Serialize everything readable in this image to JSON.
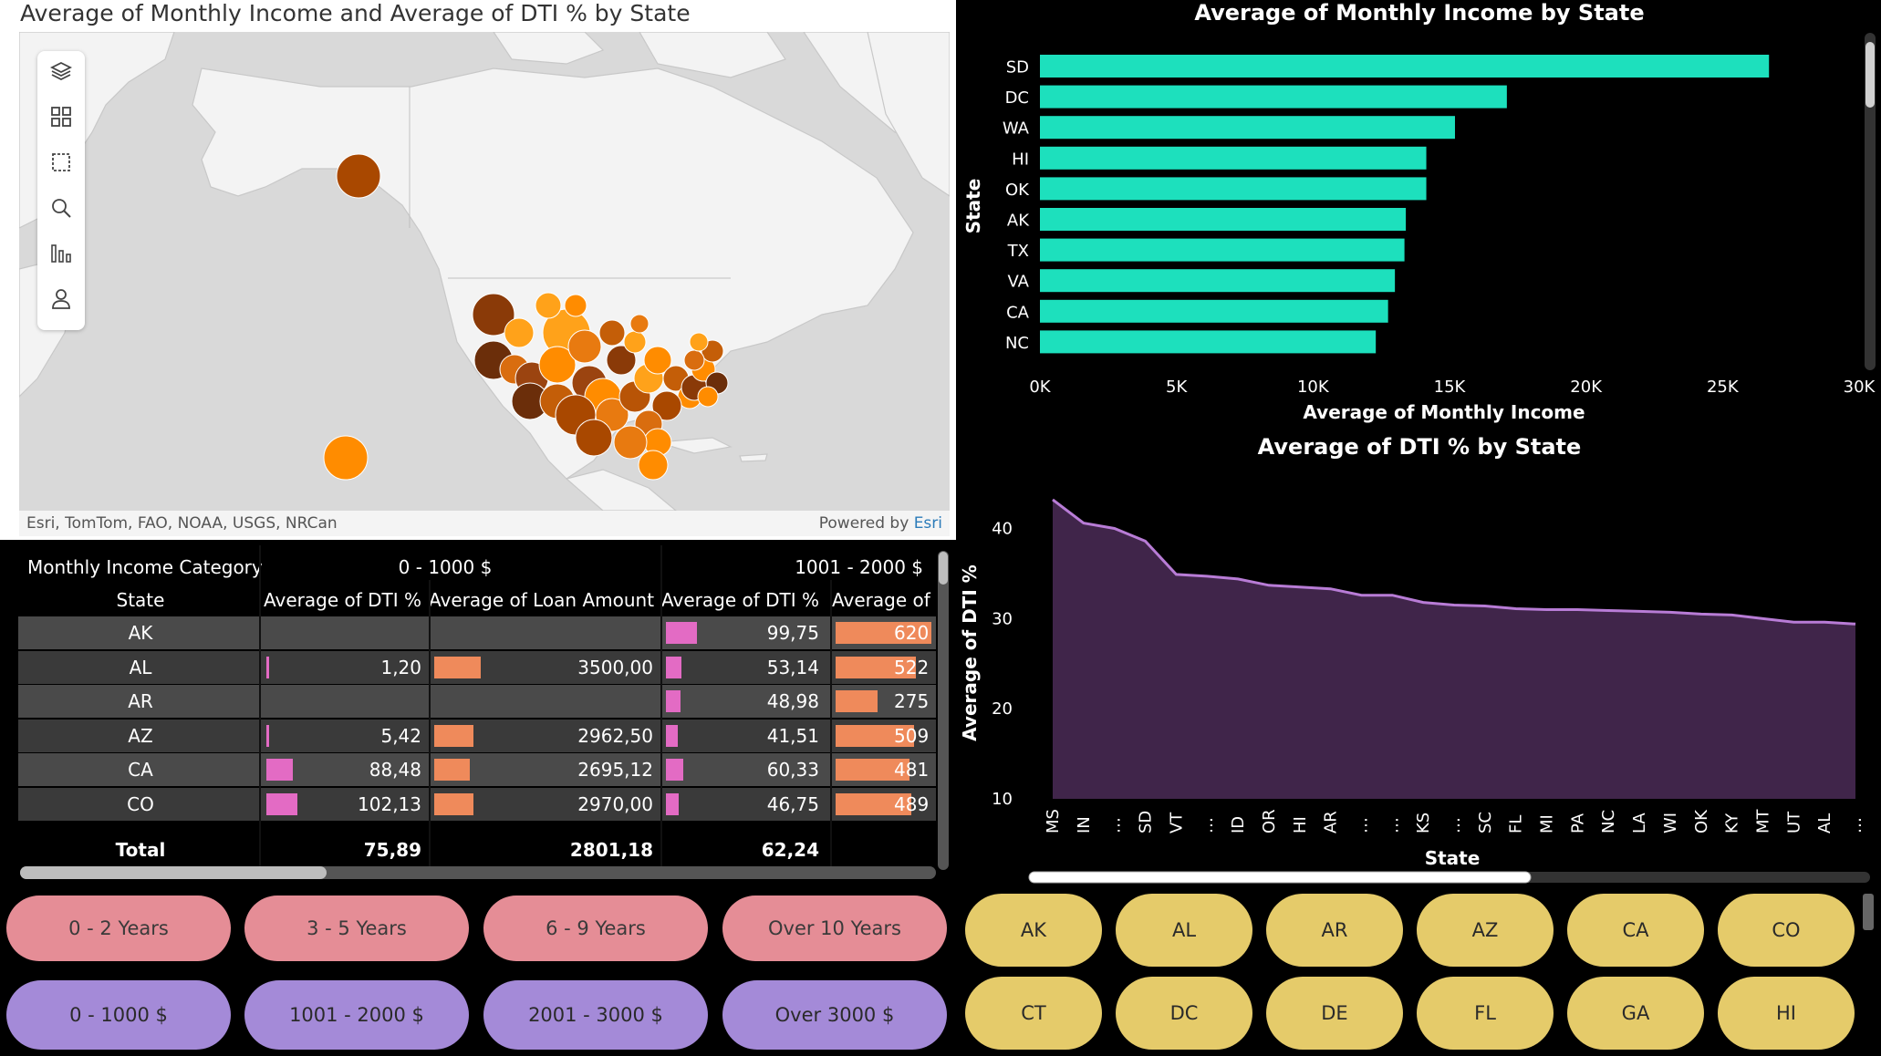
{
  "map": {
    "title": "Average of Monthly Income and Average of DTI % by State",
    "credit_left": "Esri, TomTom, FAO, NOAA, USGS, NRCan",
    "credit_powered": "Powered by",
    "credit_esri": "Esri",
    "tools": [
      "layers-icon",
      "qr-icon",
      "select-rect-icon",
      "search-icon",
      "bars-icon",
      "person-icon"
    ]
  },
  "table": {
    "header_row1": {
      "label": "Monthly Income Category",
      "group1": "0 - 1000 $",
      "group2": "1001 - 2000 $"
    },
    "header_row2": [
      "State",
      "Average of DTI %",
      "Average of Loan Amount",
      "Average of DTI %",
      "Average of L"
    ],
    "rows": [
      {
        "state": "AK",
        "dti1": "",
        "loan1": "",
        "dti2": "99,75",
        "loan2": "620",
        "dti1_frac": 0,
        "loan1_frac": 0,
        "dti2_frac": 0.28,
        "loan2_frac": 0.95
      },
      {
        "state": "AL",
        "dti1": "1,20",
        "loan1": "3500,00",
        "dti2": "53,14",
        "loan2": "522",
        "dti1_frac": 0.01,
        "loan1_frac": 0.46,
        "dti2_frac": 0.14,
        "loan2_frac": 0.8
      },
      {
        "state": "AR",
        "dti1": "",
        "loan1": "",
        "dti2": "48,98",
        "loan2": "275",
        "dti1_frac": 0,
        "loan1_frac": 0,
        "dti2_frac": 0.13,
        "loan2_frac": 0.42
      },
      {
        "state": "AZ",
        "dti1": "5,42",
        "loan1": "2962,50",
        "dti2": "41,51",
        "loan2": "509",
        "dti1_frac": 0.02,
        "loan1_frac": 0.39,
        "dti2_frac": 0.11,
        "loan2_frac": 0.78
      },
      {
        "state": "CA",
        "dti1": "88,48",
        "loan1": "2695,12",
        "dti2": "60,33",
        "loan2": "481",
        "dti1_frac": 0.24,
        "loan1_frac": 0.35,
        "dti2_frac": 0.16,
        "loan2_frac": 0.74
      },
      {
        "state": "CO",
        "dti1": "102,13",
        "loan1": "2970,00",
        "dti2": "46,75",
        "loan2": "489",
        "dti1_frac": 0.28,
        "loan1_frac": 0.39,
        "dti2_frac": 0.12,
        "loan2_frac": 0.75
      }
    ],
    "total": {
      "label": "Total",
      "dti1": "75,89",
      "loan1": "2801,18",
      "dti2": "62,24"
    }
  },
  "slicers": {
    "years": [
      "0 - 2 Years",
      "3 - 5 Years",
      "6 - 9 Years",
      "Over 10 Years"
    ],
    "income": [
      "0 - 1000 $",
      "1001 - 2000 $",
      "2001 - 3000 $",
      "Over 3000 $"
    ],
    "states": [
      "AK",
      "AL",
      "AR",
      "AZ",
      "CA",
      "CO",
      "CT",
      "DC",
      "DE",
      "FL",
      "GA",
      "HI"
    ]
  },
  "colors": {
    "bar": "#1de0bd",
    "area_fill": "#40254a",
    "area_line": "#b87cd6",
    "years_btn": "#e58d96",
    "income_btn": "#a48ad8",
    "state_btn": "#e5cb6a"
  },
  "chart_data": [
    {
      "type": "bar",
      "title": "Average of Monthly Income by State",
      "xlabel": "Average of Monthly Income",
      "ylabel": "State",
      "categories": [
        "SD",
        "DC",
        "WA",
        "HI",
        "OK",
        "AK",
        "TX",
        "VA",
        "CA",
        "NC"
      ],
      "values": [
        26700,
        17100,
        15200,
        14150,
        14150,
        13400,
        13350,
        13000,
        12750,
        12300
      ],
      "xlim": [
        0,
        30000
      ],
      "xticks": [
        "0K",
        "5K",
        "10K",
        "15K",
        "20K",
        "25K",
        "30K"
      ]
    },
    {
      "type": "area",
      "title": "Average of DTI % by State",
      "xlabel": "State",
      "ylabel": "Average of DTI %",
      "categories": [
        "MS",
        "IN",
        "…",
        "SD",
        "VT",
        "…",
        "ID",
        "OR",
        "HI",
        "AR",
        "…",
        "…",
        "KS",
        "…",
        "SC",
        "FL",
        "MI",
        "PA",
        "NC",
        "LA",
        "WI",
        "OK",
        "KY",
        "MT",
        "UT",
        "AL",
        "…"
      ],
      "values": [
        43.2,
        40.6,
        40.0,
        38.6,
        34.9,
        34.7,
        34.4,
        33.7,
        33.5,
        33.3,
        32.6,
        32.6,
        31.8,
        31.5,
        31.4,
        31.1,
        31.0,
        31.0,
        30.9,
        30.8,
        30.7,
        30.5,
        30.4,
        30.0,
        29.6,
        29.6,
        29.4
      ],
      "ylim": [
        10,
        44
      ],
      "yticks": [
        "10",
        "20",
        "30",
        "40"
      ]
    }
  ]
}
